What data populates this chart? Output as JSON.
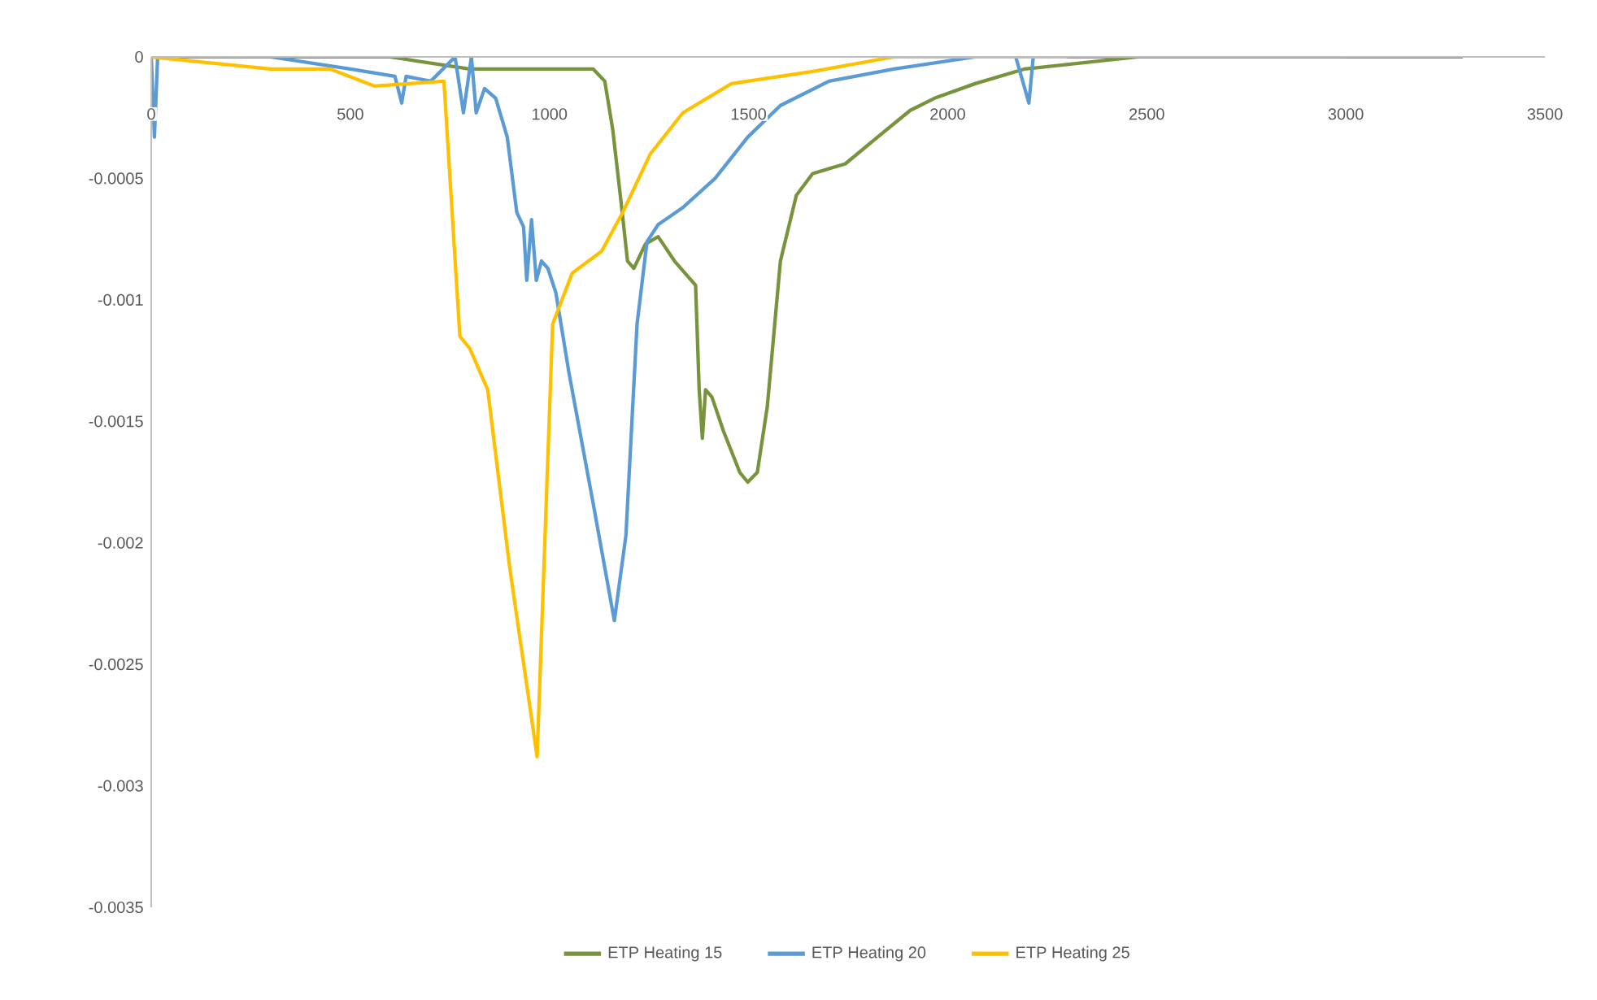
{
  "chart_data": {
    "type": "line",
    "xlim": [
      0,
      3500
    ],
    "ylim": [
      -0.0035,
      0
    ],
    "xticks": [
      0,
      500,
      1000,
      1500,
      2000,
      2500,
      3000,
      3500
    ],
    "yticks": [
      0,
      -0.0005,
      -0.001,
      -0.0015,
      -0.002,
      -0.0025,
      -0.003,
      -0.0035
    ],
    "grid": false,
    "legend": "bottom",
    "marker": "none",
    "line_style": "solid",
    "series": [
      {
        "name": "ETP Heating 15",
        "color": "#77933c",
        "x": [
          0,
          300,
          600,
          800,
          1008,
          1069,
          1110,
          1139,
          1159,
          1180,
          1196,
          1212,
          1241,
          1273,
          1314,
          1367,
          1376,
          1384,
          1392,
          1408,
          1437,
          1478,
          1498,
          1522,
          1547,
          1580,
          1620,
          1661,
          1743,
          1824,
          1906,
          1967,
          2069,
          2192,
          2478,
          2886,
          3294
        ],
        "values": [
          0,
          0,
          0,
          -5e-05,
          -5e-05,
          -5e-05,
          -5e-05,
          -0.0001,
          -0.0003,
          -0.0006,
          -0.00084,
          -0.00087,
          -0.00077,
          -0.00074,
          -0.00084,
          -0.00094,
          -0.00137,
          -0.00157,
          -0.00137,
          -0.0014,
          -0.00154,
          -0.00171,
          -0.00175,
          -0.00171,
          -0.00144,
          -0.00084,
          -0.00057,
          -0.00048,
          -0.00044,
          -0.00033,
          -0.00022,
          -0.00017,
          -0.00011,
          -5e-05,
          0,
          0,
          0
        ]
      },
      {
        "name": "ETP Heating 20",
        "color": "#5b9bd5",
        "x": [
          0,
          8,
          16,
          30,
          300,
          500,
          612,
          629,
          640,
          702,
          763,
          784,
          804,
          816,
          837,
          865,
          894,
          918,
          935,
          943,
          955,
          967,
          980,
          996,
          1016,
          1049,
          1110,
          1163,
          1192,
          1220,
          1245,
          1273,
          1335,
          1416,
          1498,
          1580,
          1702,
          1865,
          2069,
          2171,
          2204,
          2215,
          2269,
          2500,
          3000
        ],
        "values": [
          0,
          -0.00033,
          0,
          0,
          0,
          -5e-05,
          -8e-05,
          -0.00019,
          -8e-05,
          -0.0001,
          0,
          -0.00023,
          0,
          -0.00023,
          -0.00013,
          -0.00017,
          -0.00033,
          -0.00064,
          -0.0007,
          -0.00092,
          -0.00067,
          -0.00092,
          -0.00084,
          -0.00087,
          -0.00097,
          -0.0013,
          -0.00184,
          -0.00232,
          -0.00197,
          -0.0011,
          -0.00076,
          -0.00069,
          -0.00062,
          -0.0005,
          -0.00033,
          -0.0002,
          -0.0001,
          -5e-05,
          0,
          0,
          -0.00019,
          0,
          0,
          0,
          0
        ]
      },
      {
        "name": "ETP Heating 25",
        "color": "#ffc000",
        "x": [
          0,
          300,
          450,
          560,
          735,
          775,
          800,
          845,
          900,
          969,
          1008,
          1057,
          1131,
          1184,
          1253,
          1335,
          1457,
          1661,
          1865,
          2000,
          2300
        ],
        "values": [
          0,
          -5e-05,
          -5e-05,
          -0.00012,
          -0.0001,
          -0.00115,
          -0.0012,
          -0.00137,
          -0.0021,
          -0.00288,
          -0.0011,
          -0.00089,
          -0.0008,
          -0.00064,
          -0.0004,
          -0.00023,
          -0.00011,
          -6e-05,
          0,
          0,
          0
        ]
      }
    ]
  }
}
